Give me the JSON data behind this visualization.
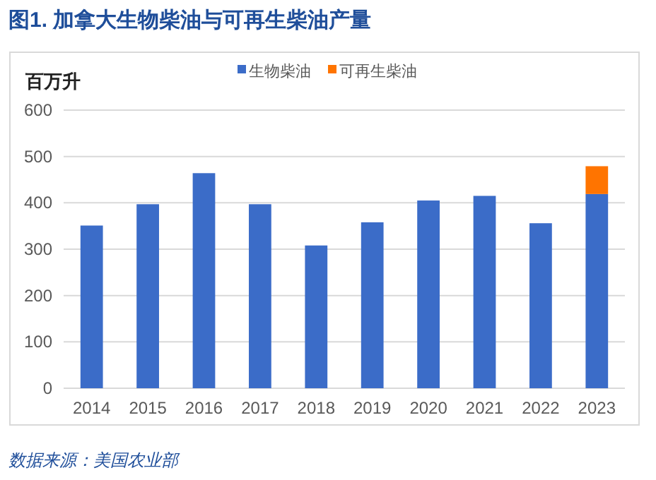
{
  "chart_data": {
    "type": "bar",
    "title": "图1. 加拿大生物柴油与可再生柴油产量",
    "ylabel": "百万升",
    "annotations": [
      "数据来源：美国农业部"
    ],
    "categories": [
      "2014",
      "2015",
      "2016",
      "2017",
      "2018",
      "2019",
      "2020",
      "2021",
      "2022",
      "2023"
    ],
    "series": [
      {
        "name": "生物柴油",
        "color": "#3b6cc8",
        "values": [
          351,
          397,
          464,
          397,
          308,
          358,
          405,
          415,
          356,
          419
        ]
      },
      {
        "name": "可再生柴油",
        "color": "#ff7400",
        "values": [
          null,
          null,
          null,
          null,
          null,
          null,
          null,
          null,
          null,
          60
        ]
      }
    ],
    "stacked": true,
    "ylim": [
      0,
      600
    ],
    "yticks": [
      0,
      100,
      200,
      300,
      400,
      500,
      600
    ],
    "grid": "y",
    "legend": "top"
  }
}
